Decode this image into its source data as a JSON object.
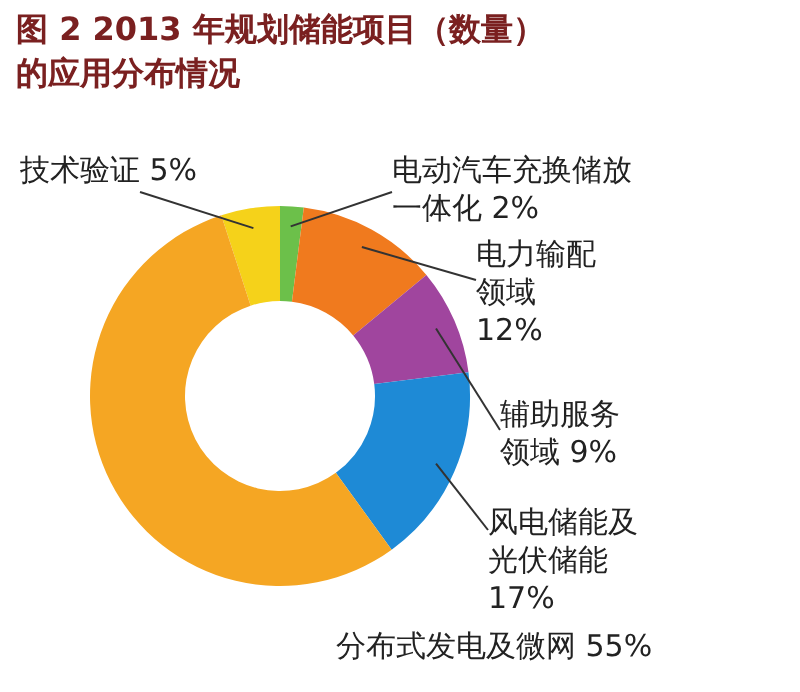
{
  "chart_data": {
    "type": "donut",
    "title": "图 2 2013 年规划储能项目（数量）的应用分布情况",
    "categories": [
      "技术验证",
      "电动汽车充换储放一体化",
      "电力输配领域",
      "辅助服务领域",
      "风电储能及光伏储能",
      "分布式发电及微网"
    ],
    "values": [
      5,
      2,
      12,
      9,
      17,
      55
    ],
    "value_labels": [
      "5%",
      "2%",
      "12%",
      "9%",
      "17%",
      "55%"
    ],
    "colors": [
      "#f5d21a",
      "#6cc04a",
      "#f07a1e",
      "#a0459e",
      "#1e8ad6",
      "#f5a623"
    ]
  }
}
